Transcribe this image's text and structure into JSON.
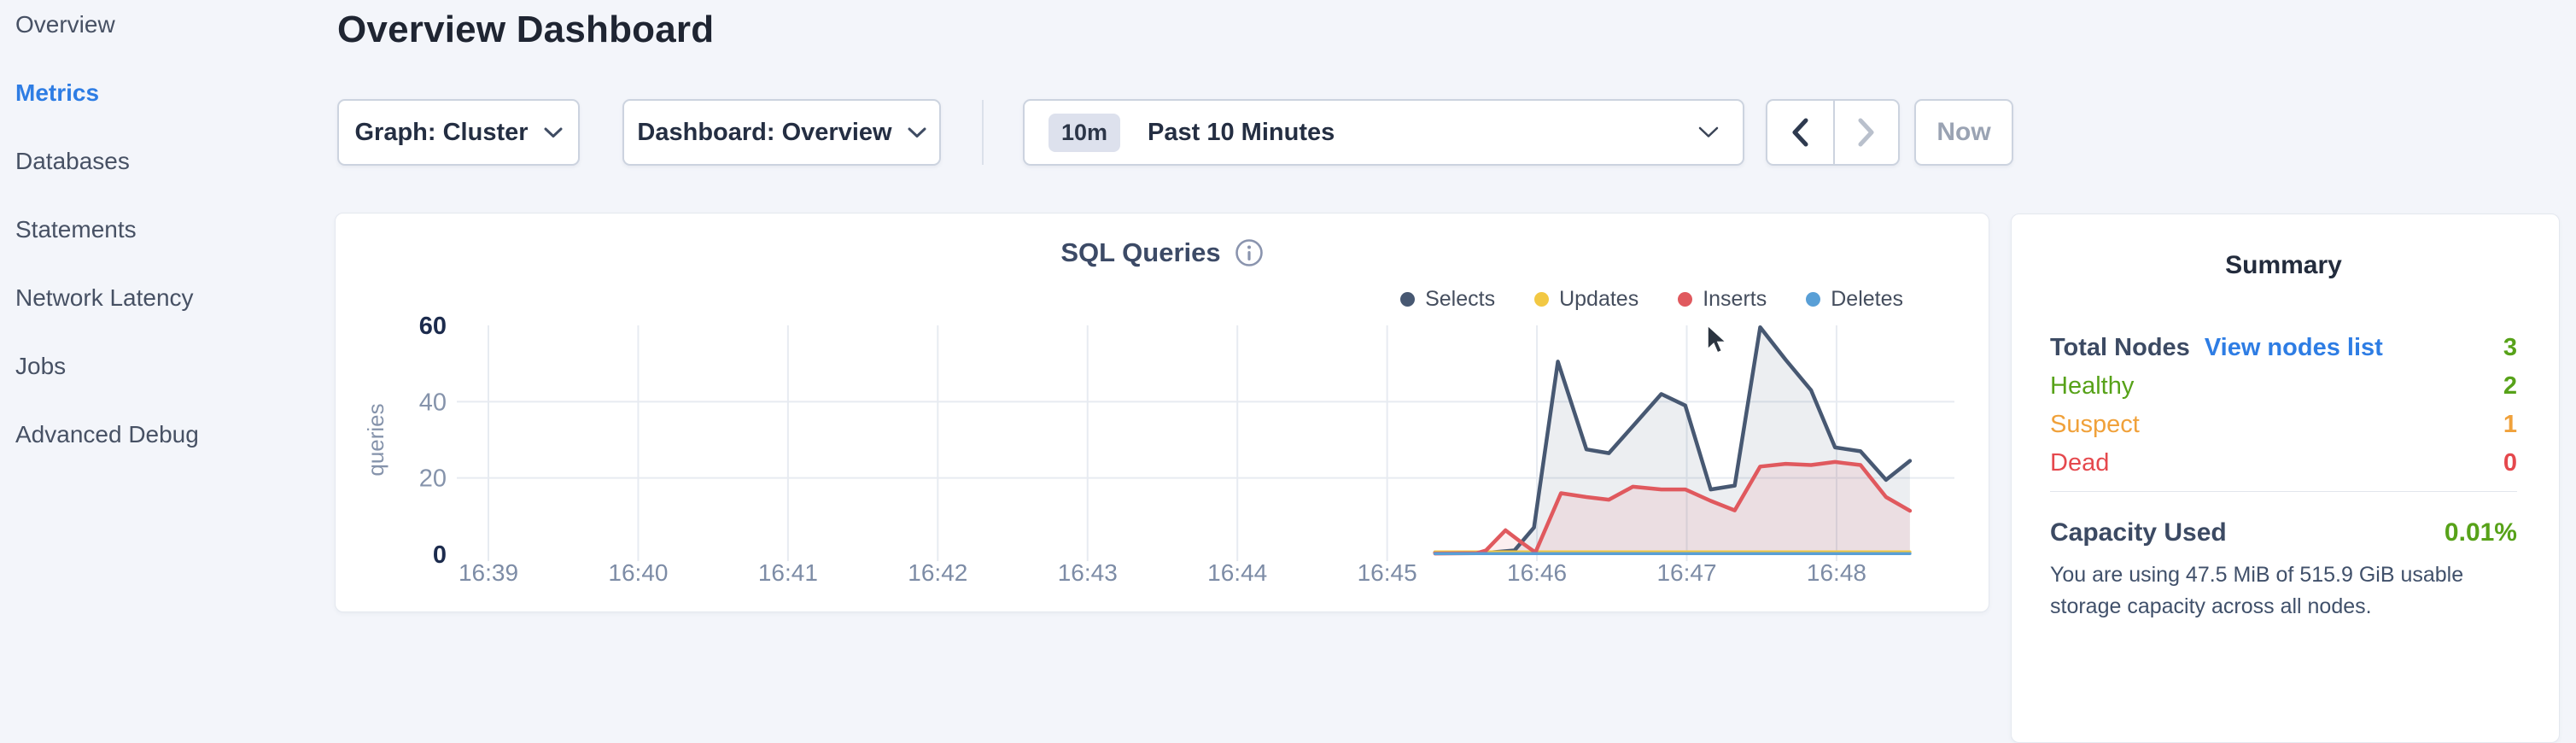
{
  "sidebar": {
    "items": [
      {
        "label": "Overview",
        "active": false
      },
      {
        "label": "Metrics",
        "active": true
      },
      {
        "label": "Databases",
        "active": false
      },
      {
        "label": "Statements",
        "active": false
      },
      {
        "label": "Network Latency",
        "active": false
      },
      {
        "label": "Jobs",
        "active": false
      },
      {
        "label": "Advanced Debug",
        "active": false
      }
    ]
  },
  "header": {
    "title": "Overview Dashboard"
  },
  "toolbar": {
    "graph_dropdown_label": "Graph: Cluster",
    "dashboard_dropdown_label": "Dashboard: Overview",
    "time_badge": "10m",
    "time_label": "Past 10 Minutes",
    "now_label": "Now"
  },
  "chart_data": {
    "type": "area",
    "title": "SQL Queries",
    "ylabel": "queries",
    "x_ticks": [
      "16:39",
      "16:40",
      "16:41",
      "16:42",
      "16:43",
      "16:44",
      "16:45",
      "16:46",
      "16:47",
      "16:48"
    ],
    "y_ticks": [
      0,
      20,
      40,
      60
    ],
    "ylim": [
      0,
      60
    ],
    "grid": {
      "vertical": true,
      "horizontal_at": [
        20,
        40
      ]
    },
    "legend_position": "top-right",
    "series": [
      {
        "name": "Selects",
        "color": "#475872",
        "fill": "rgba(71,88,114,0.10)",
        "stroke_width": 4.5,
        "points": [
          [
            6.32,
            0.5
          ],
          [
            6.7,
            0.5
          ],
          [
            6.85,
            1
          ],
          [
            6.98,
            7
          ],
          [
            7.14,
            50.5
          ],
          [
            7.33,
            27.5
          ],
          [
            7.48,
            26.5
          ],
          [
            7.65,
            34
          ],
          [
            7.83,
            42
          ],
          [
            7.99,
            39
          ],
          [
            8.16,
            17
          ],
          [
            8.32,
            18
          ],
          [
            8.49,
            59.5
          ],
          [
            8.66,
            51
          ],
          [
            8.83,
            43
          ],
          [
            8.99,
            28
          ],
          [
            9.16,
            27
          ],
          [
            9.33,
            19.5
          ],
          [
            9.49,
            24.5
          ]
        ]
      },
      {
        "name": "Updates",
        "color": "#f2c843",
        "fill": "none",
        "stroke_width": 3.5,
        "points": [
          [
            6.32,
            0.6
          ],
          [
            9.49,
            0.6
          ]
        ]
      },
      {
        "name": "Inserts",
        "color": "#e0595e",
        "fill": "rgba(224,89,94,0.10)",
        "stroke_width": 4.5,
        "points": [
          [
            6.32,
            0.2
          ],
          [
            6.6,
            0.3
          ],
          [
            6.66,
            1
          ],
          [
            6.79,
            6.3
          ],
          [
            6.9,
            3
          ],
          [
            6.99,
            0.5
          ],
          [
            7.16,
            16
          ],
          [
            7.33,
            15
          ],
          [
            7.48,
            14.3
          ],
          [
            7.64,
            17.7
          ],
          [
            7.83,
            17
          ],
          [
            7.99,
            17
          ],
          [
            8.16,
            14
          ],
          [
            8.32,
            11.5
          ],
          [
            8.49,
            23
          ],
          [
            8.66,
            23.7
          ],
          [
            8.83,
            23.4
          ],
          [
            8.99,
            24.2
          ],
          [
            9.16,
            23.4
          ],
          [
            9.33,
            15
          ],
          [
            9.49,
            11.4
          ]
        ]
      },
      {
        "name": "Deletes",
        "color": "#599fd6",
        "fill": "none",
        "stroke_width": 3.5,
        "points": [
          [
            6.32,
            0.15
          ],
          [
            9.49,
            0.15
          ]
        ]
      }
    ]
  },
  "summary": {
    "title": "Summary",
    "rows": [
      {
        "label": "Total Nodes",
        "link": "View nodes list",
        "value": "3",
        "label_color": "#3c4a63",
        "value_color": "#57a219"
      },
      {
        "label": "Healthy",
        "value": "2",
        "label_color": "#57a219",
        "value_color": "#57a219"
      },
      {
        "label": "Suspect",
        "value": "1",
        "label_color": "#f0a13a",
        "value_color": "#f0a13a"
      },
      {
        "label": "Dead",
        "value": "0",
        "label_color": "#e5484d",
        "value_color": "#e5484d"
      }
    ],
    "capacity_label": "Capacity Used",
    "capacity_value": "0.01%",
    "capacity_description": "You are using 47.5 MiB of 515.9 GiB usable storage capacity across all nodes."
  },
  "colors": {
    "link_blue": "#2e7de4",
    "healthy_green": "#57a219",
    "suspect_orange": "#f0a13a",
    "dead_red": "#e5484d",
    "active_nav": "#2e7de4",
    "gridline": "#e7ebf1"
  }
}
